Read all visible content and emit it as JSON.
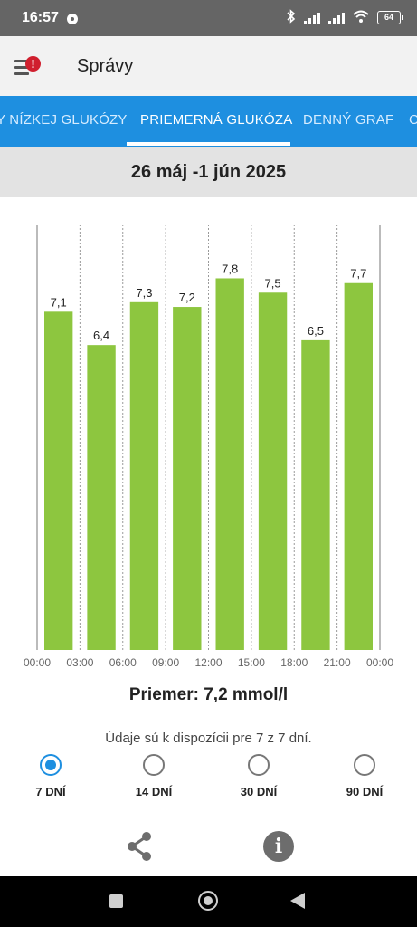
{
  "status_bar": {
    "time": "16:57",
    "battery": "64"
  },
  "app_bar": {
    "title": "Správy",
    "badge": "!"
  },
  "tabs": [
    {
      "label": "Y NÍZKEJ GLUKÓZY",
      "active": false
    },
    {
      "label": "PRIEMERNÁ GLUKÓZA",
      "active": true
    },
    {
      "label": "DENNÝ GRAF",
      "active": false
    },
    {
      "label": "C",
      "active": false
    }
  ],
  "date_range": "26 máj -1 jún 2025",
  "chart_data": {
    "type": "bar",
    "categories": [
      "00:00-03:00",
      "03:00-06:00",
      "06:00-09:00",
      "09:00-12:00",
      "12:00-15:00",
      "15:00-18:00",
      "18:00-21:00",
      "21:00-00:00"
    ],
    "values": [
      7.1,
      6.4,
      7.3,
      7.2,
      7.8,
      7.5,
      6.5,
      7.7
    ],
    "value_labels": [
      "7,1",
      "6,4",
      "7,3",
      "7,2",
      "7,8",
      "7,5",
      "6,5",
      "7,7"
    ],
    "x_ticks": [
      "00:00",
      "03:00",
      "06:00",
      "09:00",
      "12:00",
      "15:00",
      "18:00",
      "21:00",
      "00:00"
    ],
    "ylim": [
      0,
      9.5
    ],
    "bar_color": "#8dc63f",
    "grid": "dashed vertical separators"
  },
  "average": "Priemer: 7,2 mmol/l",
  "availability": "Údaje sú k dispozícii pre 7 z 7 dní.",
  "periods": [
    {
      "label": "7 DNÍ",
      "selected": true
    },
    {
      "label": "14 DNÍ",
      "selected": false
    },
    {
      "label": "30 DNÍ",
      "selected": false
    },
    {
      "label": "90 DNÍ",
      "selected": false
    }
  ],
  "colors": {
    "accent": "#1e8fe0",
    "badge": "#d01f2e",
    "bar": "#8dc63f"
  },
  "actions": {
    "share_icon": "share-icon",
    "info_icon": "info-icon",
    "info_glyph": "i"
  }
}
